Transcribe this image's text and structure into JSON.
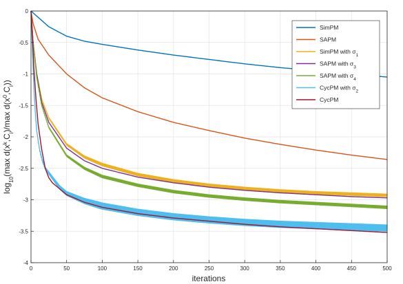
{
  "chart_data": {
    "type": "line",
    "title": "",
    "xlabel": "iterations",
    "ylabel_parts": {
      "a": "log",
      "b": "10",
      "c": "(max d(x",
      "d": "k",
      "e": ",C",
      "f": "i",
      "g": ")/max d(x",
      "h": "0",
      "i": ",C",
      "j": "i",
      "k": "))"
    },
    "xlim": [
      0,
      500
    ],
    "ylim": [
      -4,
      0
    ],
    "xticks": [
      0,
      50,
      100,
      150,
      200,
      250,
      300,
      350,
      400,
      450,
      500
    ],
    "yticks": [
      0,
      -0.5,
      -1,
      -1.5,
      -2,
      -2.5,
      -3,
      -3.5,
      -4
    ],
    "xtick_labels": [
      "0",
      "50",
      "100",
      "150",
      "200",
      "250",
      "300",
      "350",
      "400",
      "450",
      "500"
    ],
    "ytick_labels": [
      "0",
      "-0.5",
      "-1",
      "-1.5",
      "-2",
      "-2.5",
      "-3",
      "-3.5",
      "-4"
    ],
    "grid": true,
    "legend_position": "top-right",
    "series": [
      {
        "name": "SimPM",
        "name_sub": "",
        "color": "#0072BD",
        "band": 0,
        "points": [
          [
            0,
            0
          ],
          [
            10,
            -0.1
          ],
          [
            25,
            -0.25
          ],
          [
            50,
            -0.4
          ],
          [
            75,
            -0.48
          ],
          [
            100,
            -0.53
          ],
          [
            150,
            -0.62
          ],
          [
            200,
            -0.7
          ],
          [
            250,
            -0.77
          ],
          [
            300,
            -0.84
          ],
          [
            350,
            -0.9
          ],
          [
            400,
            -0.95
          ],
          [
            450,
            -1.0
          ],
          [
            500,
            -1.05
          ]
        ]
      },
      {
        "name": "SAPM",
        "name_sub": "",
        "color": "#D95319",
        "band": 0,
        "points": [
          [
            0,
            0
          ],
          [
            3,
            -0.2
          ],
          [
            10,
            -0.45
          ],
          [
            25,
            -0.7
          ],
          [
            50,
            -1.0
          ],
          [
            75,
            -1.22
          ],
          [
            100,
            -1.38
          ],
          [
            150,
            -1.6
          ],
          [
            200,
            -1.77
          ],
          [
            250,
            -1.9
          ],
          [
            300,
            -2.02
          ],
          [
            350,
            -2.12
          ],
          [
            400,
            -2.21
          ],
          [
            450,
            -2.29
          ],
          [
            500,
            -2.36
          ]
        ]
      },
      {
        "name": "SimPM with σ",
        "name_sub": "1",
        "color": "#EDB120",
        "band": 0.02,
        "points": [
          [
            0,
            0
          ],
          [
            3,
            -0.5
          ],
          [
            8,
            -1.0
          ],
          [
            15,
            -1.4
          ],
          [
            25,
            -1.7
          ],
          [
            50,
            -2.12
          ],
          [
            75,
            -2.32
          ],
          [
            100,
            -2.44
          ],
          [
            150,
            -2.6
          ],
          [
            200,
            -2.7
          ],
          [
            250,
            -2.77
          ],
          [
            300,
            -2.82
          ],
          [
            350,
            -2.86
          ],
          [
            400,
            -2.89
          ],
          [
            450,
            -2.91
          ],
          [
            500,
            -2.93
          ]
        ]
      },
      {
        "name": "SAPM with σ",
        "name_sub": "3",
        "color": "#7E2F8E",
        "band": 0,
        "points": [
          [
            0,
            0
          ],
          [
            3,
            -0.5
          ],
          [
            8,
            -1.0
          ],
          [
            15,
            -1.45
          ],
          [
            25,
            -1.77
          ],
          [
            50,
            -2.18
          ],
          [
            75,
            -2.38
          ],
          [
            100,
            -2.5
          ],
          [
            150,
            -2.64
          ],
          [
            200,
            -2.73
          ],
          [
            250,
            -2.8
          ],
          [
            300,
            -2.85
          ],
          [
            350,
            -2.89
          ],
          [
            400,
            -2.92
          ],
          [
            450,
            -2.95
          ],
          [
            500,
            -2.97
          ]
        ]
      },
      {
        "name": "SAPM with σ",
        "name_sub": "4",
        "color": "#77AC30",
        "band": 0.02,
        "points": [
          [
            0,
            0
          ],
          [
            3,
            -0.5
          ],
          [
            8,
            -1.05
          ],
          [
            15,
            -1.5
          ],
          [
            25,
            -1.85
          ],
          [
            50,
            -2.3
          ],
          [
            75,
            -2.5
          ],
          [
            100,
            -2.63
          ],
          [
            150,
            -2.77
          ],
          [
            200,
            -2.87
          ],
          [
            250,
            -2.94
          ],
          [
            300,
            -2.99
          ],
          [
            350,
            -3.03
          ],
          [
            400,
            -3.06
          ],
          [
            450,
            -3.09
          ],
          [
            500,
            -3.12
          ]
        ]
      },
      {
        "name": "CycPM with σ",
        "name_sub": "2",
        "color": "#4DBEEE",
        "band": 0.05,
        "points": [
          [
            0,
            0
          ],
          [
            2,
            -0.6
          ],
          [
            4,
            -1.2
          ],
          [
            6,
            -1.6
          ],
          [
            8,
            -1.9
          ],
          [
            12,
            -2.2
          ],
          [
            16,
            -2.38
          ],
          [
            20,
            -2.5
          ],
          [
            30,
            -2.65
          ],
          [
            40,
            -2.8
          ],
          [
            50,
            -2.9
          ],
          [
            75,
            -3.02
          ],
          [
            100,
            -3.1
          ],
          [
            150,
            -3.2
          ],
          [
            200,
            -3.27
          ],
          [
            250,
            -3.32
          ],
          [
            300,
            -3.36
          ],
          [
            350,
            -3.39
          ],
          [
            400,
            -3.41
          ],
          [
            450,
            -3.43
          ],
          [
            500,
            -3.45
          ]
        ]
      },
      {
        "name": "CycPM",
        "name_sub": "",
        "color": "#A2142F",
        "band": 0,
        "points": [
          [
            0,
            0
          ],
          [
            2,
            -0.4
          ],
          [
            4,
            -0.9
          ],
          [
            7,
            -1.4
          ],
          [
            10,
            -1.8
          ],
          [
            15,
            -2.2
          ],
          [
            20,
            -2.5
          ],
          [
            25,
            -2.65
          ],
          [
            30,
            -2.73
          ],
          [
            50,
            -2.92
          ],
          [
            75,
            -3.04
          ],
          [
            100,
            -3.12
          ],
          [
            150,
            -3.22
          ],
          [
            200,
            -3.29
          ],
          [
            250,
            -3.34
          ],
          [
            300,
            -3.39
          ],
          [
            350,
            -3.43
          ],
          [
            400,
            -3.46
          ],
          [
            450,
            -3.49
          ],
          [
            500,
            -3.52
          ]
        ]
      }
    ]
  }
}
